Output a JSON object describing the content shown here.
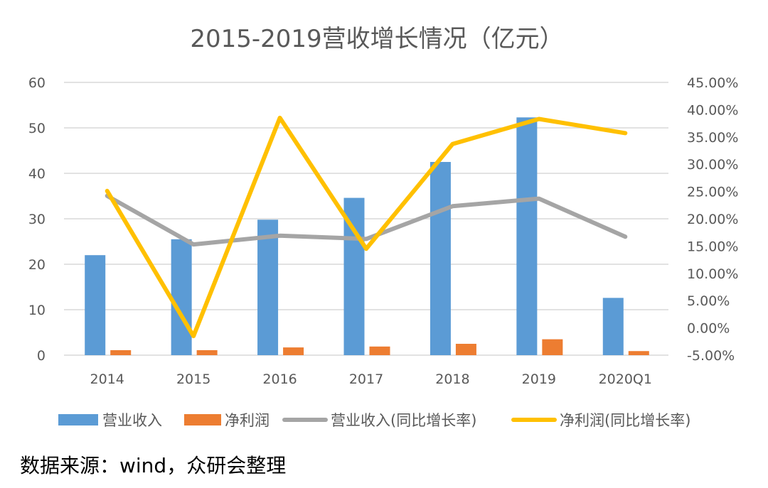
{
  "chart_data": {
    "type": "bar",
    "title": "2015-2019营收增长情况（亿元）",
    "categories": [
      "2014",
      "2015",
      "2016",
      "2017",
      "2018",
      "2019",
      "2020Q1"
    ],
    "y_left": {
      "ylim": [
        0,
        60
      ],
      "ticks": [
        0,
        10,
        20,
        30,
        40,
        50,
        60
      ]
    },
    "y_right": {
      "ylim": [
        -0.05,
        0.45
      ],
      "ticks": [
        -0.05,
        0.0,
        0.05,
        0.1,
        0.15,
        0.2,
        0.25,
        0.3,
        0.35,
        0.4,
        0.45
      ],
      "tick_labels": [
        "-5.00%",
        "0.00%",
        "5.00%",
        "10.00%",
        "15.00%",
        "20.00%",
        "25.00%",
        "30.00%",
        "35.00%",
        "40.00%",
        "45.00%"
      ]
    },
    "series": [
      {
        "name": "营业收入",
        "kind": "bar",
        "axis": "left",
        "color": "#5B9BD5",
        "values": [
          22.0,
          25.5,
          29.8,
          34.6,
          42.5,
          52.3,
          12.6
        ]
      },
      {
        "name": "净利润",
        "kind": "bar",
        "axis": "left",
        "color": "#ED7D31",
        "values": [
          1.1,
          1.1,
          1.7,
          1.9,
          2.5,
          3.5,
          0.9
        ]
      },
      {
        "name": "营业收入(同比增长率)",
        "kind": "line",
        "axis": "right",
        "color": "#A5A5A5",
        "values": [
          0.242,
          0.153,
          0.169,
          0.163,
          0.223,
          0.237,
          0.167
        ]
      },
      {
        "name": "净利润(同比增长率)",
        "kind": "line",
        "axis": "right",
        "color": "#FFC000",
        "values": [
          0.251,
          -0.015,
          0.385,
          0.145,
          0.337,
          0.383,
          0.357
        ]
      }
    ],
    "grid": true,
    "legend": "bottom"
  },
  "source_note": "数据来源：wind，众研会整理"
}
